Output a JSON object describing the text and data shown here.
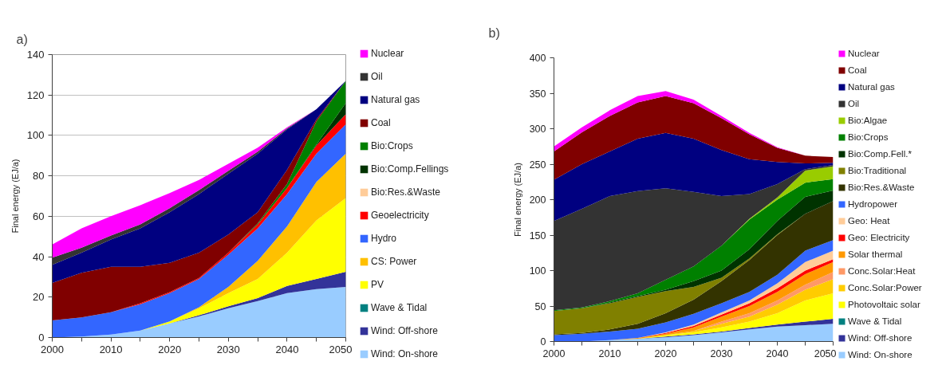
{
  "chart_data": [
    {
      "type": "area",
      "stacked": true,
      "title": "a)",
      "ylabel": "Final energy (EJ/a)",
      "x": [
        2000,
        2005,
        2010,
        2015,
        2020,
        2025,
        2030,
        2035,
        2040,
        2045,
        2050
      ],
      "xlim": [
        2000,
        2050
      ],
      "xticks": [
        2000,
        {
          "value": 2005,
          "label": null
        },
        2010,
        {
          "value": 2015,
          "label": null
        },
        2020,
        {
          "value": 2025,
          "label": null
        },
        2030,
        {
          "value": 2035,
          "label": null
        },
        2040,
        {
          "value": 2045,
          "label": null
        },
        2050
      ],
      "ylim": [
        0,
        140
      ],
      "yticks": [
        0,
        20,
        40,
        60,
        80,
        100,
        120,
        140
      ],
      "grid": "y",
      "legend": "right",
      "series": [
        {
          "name": "Wind: On-shore",
          "color": "#99ccff",
          "values": [
            0,
            0.5,
            1.5,
            3.5,
            7,
            10.5,
            14.5,
            18,
            22,
            24,
            25
          ]
        },
        {
          "name": "Wind: Off-shore",
          "color": "#333399",
          "values": [
            null,
            null,
            null,
            null,
            0,
            0.5,
            1,
            1.5,
            3.5,
            5,
            7.5
          ]
        },
        {
          "name": "Wave & Tidal",
          "color": "#008080",
          "values": [
            null,
            null,
            null,
            null,
            null,
            null,
            null,
            null,
            null,
            null,
            null
          ]
        },
        {
          "name": "PV",
          "color": "#ffff00",
          "values": [
            null,
            null,
            null,
            0,
            1,
            3.5,
            6.5,
            9.5,
            16.5,
            29,
            36.5
          ]
        },
        {
          "name": "CS: Power",
          "color": "#ffc000",
          "values": [
            null,
            null,
            null,
            null,
            0,
            0.5,
            3,
            9,
            13,
            19,
            22
          ]
        },
        {
          "name": "Hydro",
          "color": "#3366ff",
          "values": [
            8.5,
            9.5,
            11,
            13,
            14,
            14,
            16,
            16,
            16,
            14,
            14.5
          ]
        },
        {
          "name": "Geoelectricity",
          "color": "#ff0000",
          "values": [
            null,
            null,
            0,
            0.5,
            0.5,
            0.5,
            1,
            2,
            3,
            4,
            5
          ]
        },
        {
          "name": "Bio:Res.&Waste",
          "color": "#ffcc99",
          "values": [
            null,
            null,
            null,
            null,
            null,
            null,
            null,
            null,
            null,
            null,
            null
          ]
        },
        {
          "name": "Bio:Comp.Fellings",
          "color": "#003300",
          "values": [
            null,
            null,
            null,
            null,
            null,
            null,
            null,
            null,
            0,
            0.5,
            5.5
          ]
        },
        {
          "name": "Bio:Crops",
          "color": "#008000",
          "values": [
            null,
            null,
            null,
            null,
            null,
            null,
            0,
            0.5,
            2,
            11.5,
            11
          ]
        },
        {
          "name": "Coal",
          "color": "#800000",
          "values": [
            18.5,
            22,
            22.5,
            18,
            14.5,
            12.5,
            9,
            5.5,
            7,
            1,
            0
          ]
        },
        {
          "name": "Natural gas",
          "color": "#000080",
          "values": [
            9,
            10,
            13.5,
            19,
            25,
            29,
            30,
            29,
            20,
            5,
            0
          ]
        },
        {
          "name": "Oil",
          "color": "#333333",
          "values": [
            3.5,
            2.5,
            2,
            2,
            2,
            2,
            1.5,
            1,
            0.5,
            0,
            null
          ]
        },
        {
          "name": "Nuclear",
          "color": "#ff00ff",
          "values": [
            6.5,
            9.5,
            9.5,
            9.5,
            7.5,
            5,
            3.5,
            2,
            0.5,
            0,
            null
          ]
        }
      ]
    },
    {
      "type": "area",
      "stacked": true,
      "title": "b)",
      "ylabel": "Final energy (EJ/a)",
      "x": [
        2000,
        2005,
        2010,
        2015,
        2020,
        2025,
        2030,
        2035,
        2040,
        2045,
        2050
      ],
      "xlim": [
        2000,
        2050
      ],
      "xticks": [
        2000,
        {
          "value": 2005,
          "label": null
        },
        2010,
        {
          "value": 2015,
          "label": null
        },
        2020,
        {
          "value": 2025,
          "label": null
        },
        2030,
        {
          "value": 2035,
          "label": null
        },
        2040,
        {
          "value": 2045,
          "label": null
        },
        2050
      ],
      "ylim": [
        0,
        400
      ],
      "yticks": [
        0,
        50,
        100,
        150,
        200,
        250,
        300,
        350,
        400
      ],
      "legend": "right",
      "series": [
        {
          "name": "Wind: On-shore",
          "color": "#99ccff",
          "values": [
            null,
            0,
            2,
            4,
            6,
            9,
            13,
            17,
            21,
            23,
            25
          ]
        },
        {
          "name": "Wind: Off-shore",
          "color": "#333399",
          "values": [
            null,
            null,
            null,
            0,
            1,
            1,
            1,
            2,
            3,
            5,
            7
          ]
        },
        {
          "name": "Wave & Tidal",
          "color": "#008080",
          "values": [
            null,
            null,
            null,
            null,
            null,
            null,
            null,
            null,
            null,
            null,
            null
          ]
        },
        {
          "name": "Photovoltaic solar",
          "color": "#ffff00",
          "values": [
            null,
            null,
            null,
            0,
            2,
            3,
            6,
            9,
            16,
            30,
            36
          ]
        },
        {
          "name": "Conc.Solar:Power",
          "color": "#ffcc00",
          "values": [
            null,
            null,
            null,
            null,
            0,
            2,
            5,
            7,
            12,
            15,
            20
          ]
        },
        {
          "name": "Conc.Solar:Heat",
          "color": "#ff9966",
          "values": [
            null,
            null,
            null,
            null,
            null,
            0,
            3,
            5,
            6,
            7,
            10
          ]
        },
        {
          "name": "Solar thermal",
          "color": "#ff9900",
          "values": [
            null,
            null,
            0,
            1,
            2,
            5,
            7,
            10,
            12,
            15,
            14
          ]
        },
        {
          "name": "Geo: Electricity",
          "color": "#ff0000",
          "values": [
            null,
            null,
            null,
            0,
            1,
            2,
            3,
            4,
            5,
            5,
            4
          ]
        },
        {
          "name": "Geo: Heat",
          "color": "#ffcc99",
          "values": [
            null,
            null,
            null,
            0,
            1,
            2,
            3,
            4,
            7,
            12,
            12
          ]
        },
        {
          "name": "Hydropower",
          "color": "#3366ff",
          "values": [
            9,
            11,
            12,
            13,
            14,
            15,
            13,
            12,
            12,
            16,
            15
          ]
        },
        {
          "name": "Bio:Res.&Waste",
          "color": "#333300",
          "values": [
            1,
            1,
            3,
            7,
            13,
            20,
            31,
            45,
            56,
            52,
            55
          ]
        },
        {
          "name": "Bio:Traditional",
          "color": "#808000",
          "values": [
            33,
            35,
            37,
            38,
            31,
            18,
            5,
            2,
            1,
            0,
            null
          ]
        },
        {
          "name": "Bio:Comp.Fell.*",
          "color": "#003300",
          "values": [
            null,
            0,
            1,
            1,
            2,
            8,
            10,
            13,
            19,
            24,
            15
          ]
        },
        {
          "name": "Bio:Crops",
          "color": "#008000",
          "values": [
            1,
            1,
            2,
            4,
            14,
            21,
            35,
            42,
            30,
            20,
            16
          ]
        },
        {
          "name": "Bio:Algae",
          "color": "#99cc00",
          "values": [
            null,
            null,
            null,
            null,
            null,
            null,
            0,
            1,
            3,
            17,
            18
          ]
        },
        {
          "name": "Oil",
          "color": "#333333",
          "values": [
            126,
            139,
            148,
            144,
            129,
            105,
            70,
            35,
            19,
            2,
            2
          ]
        },
        {
          "name": "Natural gas",
          "color": "#000080",
          "values": [
            58,
            63,
            63,
            74,
            78,
            75,
            65,
            49,
            31,
            8,
            3
          ]
        },
        {
          "name": "Coal",
          "color": "#800000",
          "values": [
            40,
            45,
            50,
            51,
            52,
            50,
            45,
            35,
            20,
            11,
            8
          ]
        },
        {
          "name": "Nuclear",
          "color": "#ff00ff",
          "values": [
            7,
            7,
            8,
            9,
            7,
            5,
            3,
            2,
            1,
            0,
            null
          ]
        }
      ]
    }
  ]
}
